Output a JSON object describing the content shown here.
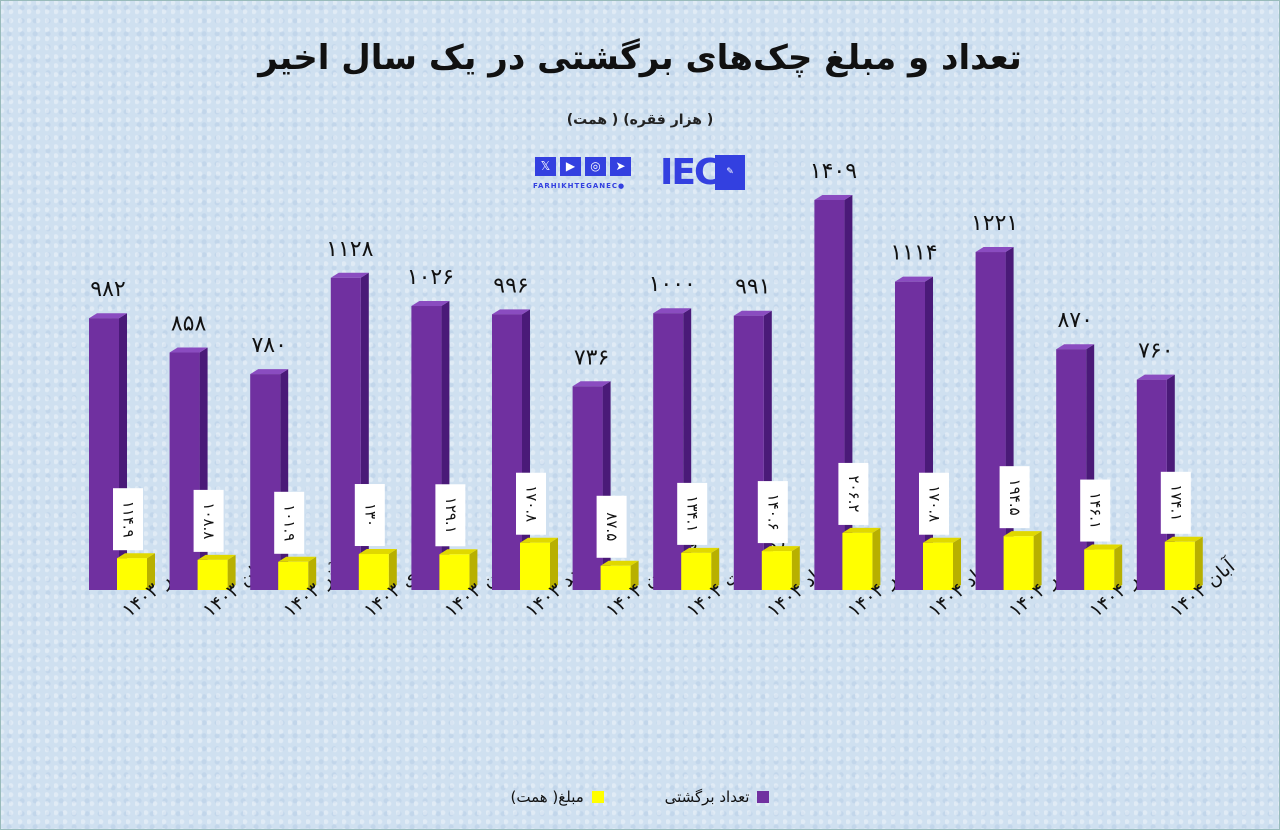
{
  "chart_data": {
    "type": "bar",
    "title": "تعداد و مبلغ چک‌های برگشتی در یک سال اخیر",
    "subtitle": "( هزار فقره) ( همت)",
    "categories": [
      "مهر ۱۴۰۳",
      "آبان ۱۴۰۳",
      "آذر ۱۴۰۳",
      "دی ۱۴۰۳",
      "بهمن ۱۴۰۳",
      "اسفند ۱۴۰۳",
      "فروردین ۱۴۰۴",
      "اردیبهشت ۱۴۰۴",
      "خرداد ۱۴۰۴",
      "تیر ۱۴۰۴",
      "مرداد ۱۴۰۴",
      "شهریور ۱۴۰۴",
      "مهر ۱۴۰۴",
      "آبان ۱۴۰۴"
    ],
    "series": [
      {
        "name": "تعداد برگشتی",
        "color": "#7030a0",
        "values": [
          982,
          858,
          780,
          1128,
          1026,
          996,
          736,
          1000,
          991,
          1409,
          1114,
          1221,
          870,
          760
        ]
      },
      {
        "name": "مبلغ( همت)",
        "color": "#ffff00",
        "values": [
          114.9,
          108.8,
          101.9,
          130,
          129.1,
          170.8,
          87.5,
          134.1,
          140.6,
          206.2,
          170.8,
          194.5,
          146.1,
          174.1
        ]
      }
    ],
    "xlabel": "",
    "ylabel": "",
    "ylim": [
      0,
      1409
    ],
    "grid": false,
    "legend": "bottom-center"
  },
  "logo": {
    "text": "FARHIKHTEGANEC●",
    "brand": "IEC"
  }
}
